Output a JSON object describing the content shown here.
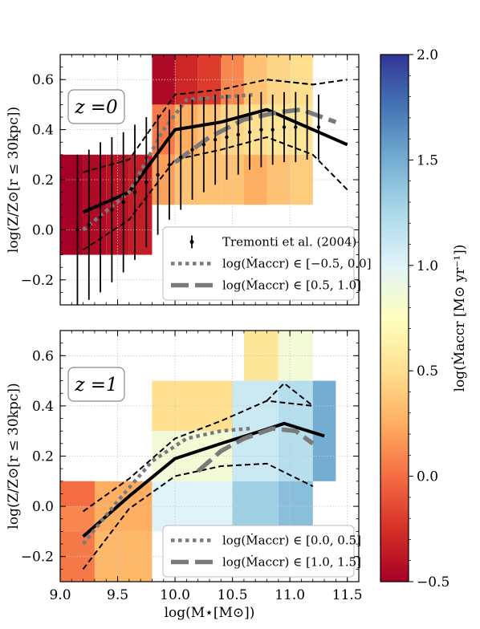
{
  "chart_data": [
    {
      "type": "heatmap",
      "panel_label": "z =0",
      "ylabel": "log(Z/Z⊙[r ≤ 30kpc])",
      "xlabel": "",
      "xlim": [
        9.0,
        11.6
      ],
      "ylim": [
        -0.3,
        0.7
      ],
      "yticks": [
        -0.2,
        0.0,
        0.2,
        0.4,
        0.6
      ],
      "ytick_labels": [
        "−0.2",
        "0.0",
        "0.2",
        "0.4",
        "0.6"
      ],
      "grid": true,
      "legend_placement": "lower-right",
      "heatmap_cells": [
        {
          "x0": 9.0,
          "x1": 9.2,
          "y0": -0.1,
          "y1": 0.3,
          "value": -0.5
        },
        {
          "x0": 9.2,
          "x1": 9.4,
          "y0": -0.1,
          "y1": 0.3,
          "value": -0.45
        },
        {
          "x0": 9.4,
          "x1": 9.6,
          "y0": -0.1,
          "y1": 0.3,
          "value": -0.4
        },
        {
          "x0": 9.6,
          "x1": 9.8,
          "y0": -0.1,
          "y1": 0.3,
          "value": -0.35
        },
        {
          "x0": 9.8,
          "x1": 10.0,
          "y0": 0.5,
          "y1": 0.7,
          "value": -0.45
        },
        {
          "x0": 10.0,
          "x1": 10.2,
          "y0": 0.5,
          "y1": 0.7,
          "value": -0.3
        },
        {
          "x0": 10.2,
          "x1": 10.4,
          "y0": 0.5,
          "y1": 0.7,
          "value": -0.2
        },
        {
          "x0": 10.4,
          "x1": 10.6,
          "y0": 0.5,
          "y1": 0.7,
          "value": 0.1
        },
        {
          "x0": 10.6,
          "x1": 10.8,
          "y0": 0.5,
          "y1": 0.7,
          "value": 0.35
        },
        {
          "x0": 10.8,
          "x1": 11.0,
          "y0": 0.5,
          "y1": 0.7,
          "value": 0.45
        },
        {
          "x0": 11.0,
          "x1": 11.2,
          "y0": 0.5,
          "y1": 0.7,
          "value": 0.5
        },
        {
          "x0": 9.8,
          "x1": 10.0,
          "y0": 0.3,
          "y1": 0.5,
          "value": 0.05
        },
        {
          "x0": 10.0,
          "x1": 10.2,
          "y0": 0.3,
          "y1": 0.5,
          "value": 0.25
        },
        {
          "x0": 10.2,
          "x1": 10.4,
          "y0": 0.3,
          "y1": 0.5,
          "value": 0.35
        },
        {
          "x0": 10.4,
          "x1": 10.6,
          "y0": 0.3,
          "y1": 0.5,
          "value": 0.45
        },
        {
          "x0": 10.6,
          "x1": 10.8,
          "y0": 0.3,
          "y1": 0.5,
          "value": 0.5
        },
        {
          "x0": 10.8,
          "x1": 11.0,
          "y0": 0.3,
          "y1": 0.5,
          "value": 0.55
        },
        {
          "x0": 11.0,
          "x1": 11.2,
          "y0": 0.3,
          "y1": 0.5,
          "value": 0.55
        },
        {
          "x0": 9.8,
          "x1": 10.0,
          "y0": 0.1,
          "y1": 0.3,
          "value": 0.2
        },
        {
          "x0": 10.0,
          "x1": 10.2,
          "y0": 0.1,
          "y1": 0.3,
          "value": 0.35
        },
        {
          "x0": 10.2,
          "x1": 10.4,
          "y0": 0.1,
          "y1": 0.3,
          "value": 0.35
        },
        {
          "x0": 10.4,
          "x1": 10.6,
          "y0": 0.1,
          "y1": 0.3,
          "value": 0.35
        },
        {
          "x0": 10.6,
          "x1": 10.8,
          "y0": 0.1,
          "y1": 0.3,
          "value": 0.25
        },
        {
          "x0": 10.8,
          "x1": 11.0,
          "y0": 0.1,
          "y1": 0.3,
          "value": 0.35
        },
        {
          "x0": 11.0,
          "x1": 11.2,
          "y0": 0.1,
          "y1": 0.3,
          "value": 0.4
        }
      ],
      "series": [
        {
          "style": "solid-black",
          "x": [
            9.2,
            9.6,
            10.0,
            10.4,
            10.8,
            11.2,
            11.5
          ],
          "y": [
            0.07,
            0.15,
            0.4,
            0.43,
            0.48,
            0.4,
            0.34
          ]
        },
        {
          "style": "dashed-black",
          "x": [
            9.2,
            9.6,
            10.0,
            10.4,
            10.8,
            11.2
          ],
          "y": [
            0.23,
            0.28,
            0.54,
            0.56,
            0.6,
            0.58
          ]
        },
        {
          "style": "dashed-black",
          "x": [
            9.2,
            9.6,
            10.0,
            10.4,
            10.8,
            11.2,
            11.5
          ],
          "y": [
            -0.08,
            0.04,
            0.28,
            0.32,
            0.37,
            0.3,
            0.16
          ]
        },
        {
          "style": "dashed-black",
          "x": [
            10.8,
            11.2,
            11.5
          ],
          "y": [
            0.6,
            0.58,
            0.6
          ]
        },
        {
          "name": "log(Ṁaccr) ∈ [−0.5, 0.0]",
          "style": "dotted-gray",
          "x": [
            9.2,
            9.6,
            9.9,
            10.1,
            10.4,
            10.7
          ],
          "y": [
            0.0,
            0.15,
            0.4,
            0.52,
            0.53,
            0.54
          ]
        },
        {
          "name": "log(Ṁaccr) ∈ [0.5, 1.0]",
          "style": "longdash-gray",
          "x": [
            10.0,
            10.3,
            10.6,
            10.9,
            11.1,
            11.4
          ],
          "y": [
            0.27,
            0.37,
            0.44,
            0.47,
            0.48,
            0.43
          ]
        },
        {
          "name": "Tremonti et al. (2004)",
          "style": "errorbar",
          "x": [
            9.15,
            9.25,
            9.35,
            9.45,
            9.55,
            9.65,
            9.75,
            9.85,
            9.95,
            10.05,
            10.15,
            10.25,
            10.35,
            10.45,
            10.55,
            10.65,
            10.75,
            10.85,
            10.95,
            11.05,
            11.15,
            11.25
          ],
          "y": [
            0.0,
            0.02,
            0.05,
            0.08,
            0.11,
            0.15,
            0.19,
            0.22,
            0.26,
            0.29,
            0.32,
            0.34,
            0.36,
            0.37,
            0.38,
            0.39,
            0.4,
            0.4,
            0.41,
            0.41,
            0.41,
            0.41
          ],
          "yerr": [
            0.3,
            0.3,
            0.3,
            0.29,
            0.28,
            0.27,
            0.26,
            0.24,
            0.22,
            0.21,
            0.2,
            0.19,
            0.18,
            0.17,
            0.16,
            0.15,
            0.15,
            0.14,
            0.14,
            0.14,
            0.13,
            0.13
          ]
        }
      ],
      "legend": [
        "Tremonti et al. (2004)",
        "log(Ṁaccr) ∈ [−0.5, 0.0]",
        "log(Ṁaccr) ∈ [0.5, 1.0]"
      ]
    },
    {
      "type": "heatmap",
      "panel_label": "z =1",
      "ylabel": "log(Z/Z⊙[r ≤ 30kpc])",
      "xlabel": "log(M⋆[M⊙])",
      "xlim": [
        9.0,
        11.6
      ],
      "ylim": [
        -0.3,
        0.7
      ],
      "xticks": [
        9.0,
        9.5,
        10.0,
        10.5,
        11.0,
        11.5
      ],
      "xtick_labels": [
        "9.0",
        "9.5",
        "10.0",
        "10.5",
        "11.0",
        "11.5"
      ],
      "yticks": [
        -0.2,
        0.0,
        0.2,
        0.4,
        0.6
      ],
      "ytick_labels": [
        "−0.2",
        "0.0",
        "0.2",
        "0.4",
        "0.6"
      ],
      "grid": true,
      "legend_placement": "lower-right",
      "heatmap_cells": [
        {
          "x0": 9.0,
          "x1": 9.3,
          "y0": -0.1,
          "y1": 0.1,
          "value": 0.1
        },
        {
          "x0": 9.3,
          "x1": 9.8,
          "y0": -0.1,
          "y1": 0.1,
          "value": 0.25
        },
        {
          "x0": 9.0,
          "x1": 9.3,
          "y0": 0.0,
          "y1": 0.1,
          "value": 0.0
        },
        {
          "x0": 9.0,
          "x1": 9.3,
          "y0": -0.3,
          "y1": -0.1,
          "value": 0.05
        },
        {
          "x0": 9.3,
          "x1": 9.8,
          "y0": -0.3,
          "y1": -0.1,
          "value": 0.3
        },
        {
          "x0": 9.8,
          "x1": 10.5,
          "y0": 0.3,
          "y1": 0.5,
          "value": 0.5
        },
        {
          "x0": 10.6,
          "x1": 10.9,
          "y0": 0.5,
          "y1": 0.7,
          "value": 0.55
        },
        {
          "x0": 10.9,
          "x1": 11.2,
          "y0": 0.5,
          "y1": 0.7,
          "value": 0.85
        },
        {
          "x0": 9.8,
          "x1": 10.5,
          "y0": 0.1,
          "y1": 0.3,
          "value": 0.85
        },
        {
          "x0": 10.5,
          "x1": 10.9,
          "y0": 0.1,
          "y1": 0.5,
          "value": 1.1
        },
        {
          "x0": 10.9,
          "x1": 11.2,
          "y0": 0.1,
          "y1": 0.5,
          "value": 1.2
        },
        {
          "x0": 11.2,
          "x1": 11.4,
          "y0": 0.1,
          "y1": 0.5,
          "value": 1.5
        },
        {
          "x0": 9.8,
          "x1": 10.5,
          "y0": -0.1,
          "y1": 0.1,
          "value": 1.0
        },
        {
          "x0": 10.5,
          "x1": 10.9,
          "y0": -0.1,
          "y1": 0.1,
          "value": 1.3
        },
        {
          "x0": 10.9,
          "x1": 11.2,
          "y0": -0.1,
          "y1": 0.1,
          "value": 1.4
        }
      ],
      "series": [
        {
          "style": "solid-black",
          "x": [
            9.2,
            9.6,
            10.0,
            10.4,
            10.75,
            10.95,
            11.3
          ],
          "y": [
            -0.12,
            0.04,
            0.19,
            0.25,
            0.3,
            0.33,
            0.28
          ]
        },
        {
          "style": "dashed-black",
          "x": [
            9.2,
            9.6,
            10.0,
            10.4,
            10.8,
            11.2
          ],
          "y": [
            -0.02,
            0.11,
            0.27,
            0.34,
            0.42,
            0.4
          ]
        },
        {
          "style": "dashed-black",
          "x": [
            9.2,
            9.6,
            10.0,
            10.4,
            10.8,
            11.2
          ],
          "y": [
            -0.25,
            -0.01,
            0.12,
            0.16,
            0.17,
            0.08
          ]
        },
        {
          "style": "dashed-black",
          "x": [
            10.8,
            10.95,
            11.2
          ],
          "y": [
            0.42,
            0.49,
            0.4
          ]
        },
        {
          "name": "log(Ṁaccr) ∈ [0.0, 0.5]",
          "style": "dotted-gray",
          "x": [
            9.2,
            9.5,
            9.8,
            10.1,
            10.4,
            10.65
          ],
          "y": [
            -0.15,
            0.02,
            0.18,
            0.27,
            0.3,
            0.31
          ]
        },
        {
          "name": "log(Ṁaccr) ∈ [1.0, 1.5]",
          "style": "longdash-gray",
          "x": [
            10.2,
            10.4,
            10.6,
            10.85,
            11.05,
            11.2
          ],
          "y": [
            0.14,
            0.22,
            0.27,
            0.31,
            0.3,
            0.25
          ]
        }
      ],
      "legend": [
        "log(Ṁaccr) ∈ [0.0, 0.5]",
        "log(Ṁaccr) ∈ [1.0, 1.5]"
      ]
    }
  ],
  "colorbar": {
    "label": "log(Ṁaccr [M⊙ yr⁻¹])",
    "range": [
      -0.5,
      2.0
    ],
    "ticks": [
      -0.5,
      0.0,
      0.5,
      1.0,
      1.5,
      2.0
    ],
    "tick_labels": [
      "−0.5",
      "0.0",
      "0.5",
      "1.0",
      "1.5",
      "2.0"
    ],
    "colormap": "RdYlBu",
    "stops": [
      "#a50026",
      "#d73027",
      "#f46d43",
      "#fdae61",
      "#fee090",
      "#ffffbf",
      "#e0f3f8",
      "#abd9e9",
      "#74add1",
      "#4575b4",
      "#313695"
    ]
  },
  "colors": {
    "black": "#000000",
    "gray": "#7a7a7a",
    "grid": "#c9c9c9"
  }
}
